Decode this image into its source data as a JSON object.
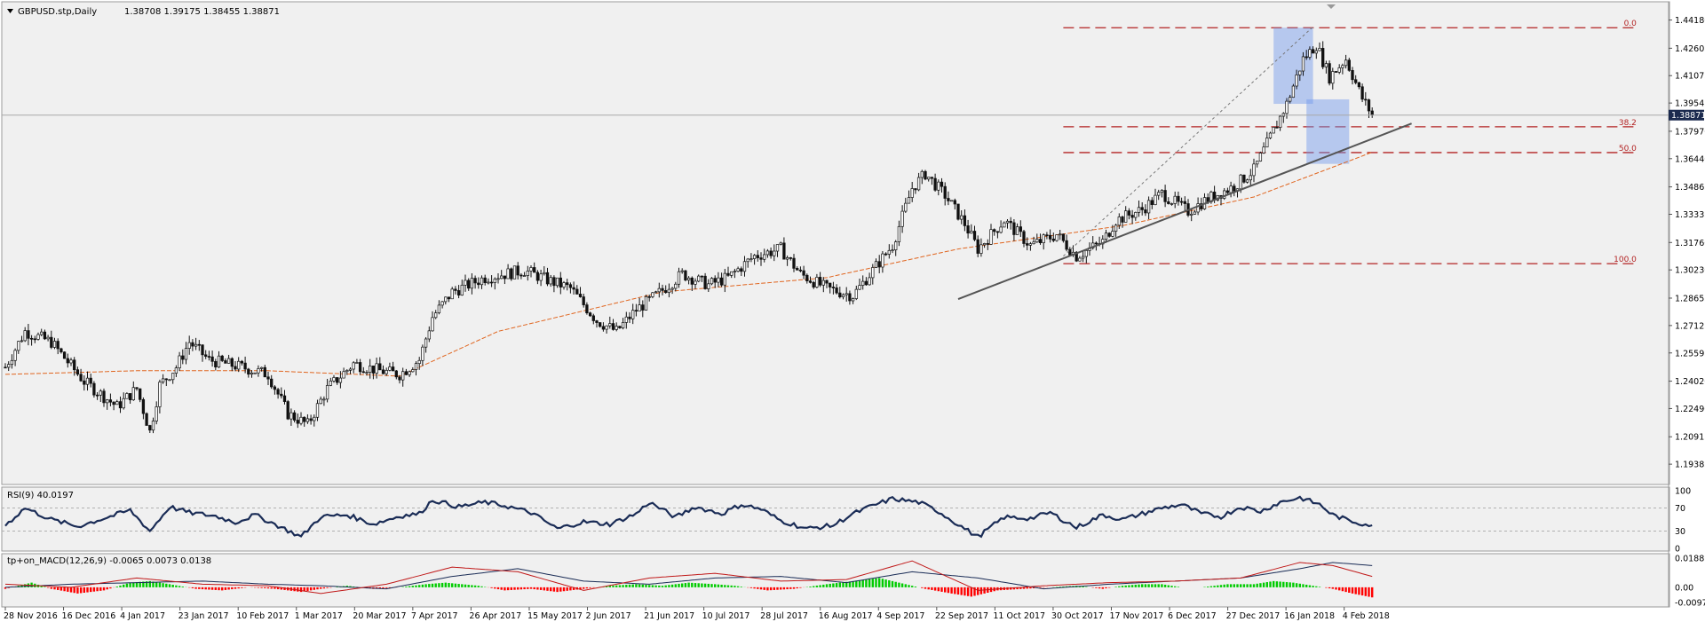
{
  "chart_data": {
    "type": "candlestick",
    "header": {
      "symbol_label": "GBPUSD.stp,Daily",
      "ohlc_label": "1.38708 1.39175 1.38455 1.38871"
    },
    "price_axis": {
      "ylim": [
        1.1845,
        1.45
      ],
      "ticks": [
        "1.44180",
        "1.42605",
        "1.41075",
        "1.39545",
        "1.37970",
        "1.36440",
        "1.34865",
        "1.33335",
        "1.31760",
        "1.30230",
        "1.28655",
        "1.27125",
        "1.25595",
        "1.24020",
        "1.22490",
        "1.20915",
        "1.19385"
      ],
      "current_price_label": "1.38871",
      "current_price": 1.38871
    },
    "x_axis": {
      "labels": [
        "28 Nov 2016",
        "16 Dec 2016",
        "4 Jan 2017",
        "23 Jan 2017",
        "10 Feb 2017",
        "1 Mar 2017",
        "20 Mar 2017",
        "7 Apr 2017",
        "26 Apr 2017",
        "15 May 2017",
        "2 Jun 2017",
        "21 Jun 2017",
        "10 Jul 2017",
        "28 Jul 2017",
        "16 Aug 2017",
        "4 Sep 2017",
        "22 Sep 2017",
        "11 Oct 2017",
        "30 Oct 2017",
        "17 Nov 2017",
        "6 Dec 2017",
        "27 Dec 2017",
        "16 Jan 2018",
        "4 Feb 2018"
      ]
    },
    "close_path_anchors": [
      [
        0,
        1.248
      ],
      [
        6,
        1.268
      ],
      [
        14,
        1.262
      ],
      [
        24,
        1.24
      ],
      [
        34,
        1.226
      ],
      [
        40,
        1.236
      ],
      [
        44,
        1.212
      ],
      [
        47,
        1.238
      ],
      [
        52,
        1.248
      ],
      [
        56,
        1.262
      ],
      [
        62,
        1.252
      ],
      [
        72,
        1.248
      ],
      [
        80,
        1.244
      ],
      [
        86,
        1.222
      ],
      [
        92,
        1.216
      ],
      [
        98,
        1.236
      ],
      [
        106,
        1.25
      ],
      [
        114,
        1.246
      ],
      [
        120,
        1.244
      ],
      [
        126,
        1.252
      ],
      [
        130,
        1.276
      ],
      [
        136,
        1.29
      ],
      [
        146,
        1.298
      ],
      [
        158,
        1.302
      ],
      [
        166,
        1.296
      ],
      [
        172,
        1.292
      ],
      [
        180,
        1.274
      ],
      [
        186,
        1.268
      ],
      [
        192,
        1.28
      ],
      [
        198,
        1.288
      ],
      [
        206,
        1.3
      ],
      [
        214,
        1.294
      ],
      [
        220,
        1.298
      ],
      [
        228,
        1.31
      ],
      [
        236,
        1.314
      ],
      [
        242,
        1.3
      ],
      [
        250,
        1.292
      ],
      [
        258,
        1.288
      ],
      [
        264,
        1.302
      ],
      [
        270,
        1.316
      ],
      [
        276,
        1.348
      ],
      [
        280,
        1.356
      ],
      [
        286,
        1.344
      ],
      [
        292,
        1.328
      ],
      [
        296,
        1.314
      ],
      [
        304,
        1.33
      ],
      [
        312,
        1.316
      ],
      [
        320,
        1.322
      ],
      [
        326,
        1.31
      ],
      [
        334,
        1.318
      ],
      [
        338,
        1.33
      ],
      [
        346,
        1.336
      ],
      [
        352,
        1.345
      ],
      [
        360,
        1.335
      ],
      [
        366,
        1.342
      ],
      [
        374,
        1.349
      ],
      [
        380,
        1.358
      ],
      [
        386,
        1.38
      ],
      [
        390,
        1.395
      ],
      [
        395,
        1.42
      ],
      [
        399,
        1.428
      ],
      [
        403,
        1.41
      ],
      [
        408,
        1.42
      ],
      [
        413,
        1.398
      ],
      [
        416,
        1.389
      ]
    ],
    "moving_average": {
      "name": "",
      "color": "#e0651f",
      "anchors": [
        [
          0,
          1.244
        ],
        [
          40,
          1.246
        ],
        [
          80,
          1.246
        ],
        [
          120,
          1.243
        ],
        [
          150,
          1.268
        ],
        [
          200,
          1.29
        ],
        [
          250,
          1.298
        ],
        [
          290,
          1.314
        ],
        [
          340,
          1.327
        ],
        [
          380,
          1.343
        ],
        [
          416,
          1.368
        ]
      ]
    },
    "trend_line": {
      "from": [
        290,
        1.286
      ],
      "to": [
        428,
        1.384
      ],
      "color": "#555555"
    },
    "dashed_peak_line": {
      "from": [
        322,
        1.31
      ],
      "to": [
        398,
        1.438
      ]
    },
    "fibonacci": {
      "color": "#b22222",
      "x_from": 322,
      "x_to": 497,
      "levels": [
        {
          "label": "0.0",
          "price": 1.4375
        },
        {
          "label": "38.2",
          "price": 1.3822
        },
        {
          "label": "50.0",
          "price": 1.3678
        },
        {
          "label": "100.0",
          "price": 1.3058
        }
      ]
    },
    "boxes": [
      {
        "x": [
          386,
          398
        ],
        "y": [
          1.395,
          1.4375
        ]
      },
      {
        "x": [
          396,
          409
        ],
        "y": [
          1.382,
          1.3975
        ]
      },
      {
        "x": [
          396,
          409
        ],
        "y": [
          1.3615,
          1.382
        ]
      }
    ],
    "rsi": {
      "label": "RSI(9) 40.0197",
      "value": 40.0197,
      "scale_labels": [
        "100",
        "70",
        "30",
        "0"
      ],
      "levels": [
        70,
        30
      ],
      "anchors": [
        [
          0,
          40
        ],
        [
          6,
          70
        ],
        [
          14,
          50
        ],
        [
          22,
          38
        ],
        [
          30,
          52
        ],
        [
          38,
          66
        ],
        [
          44,
          30
        ],
        [
          50,
          72
        ],
        [
          56,
          62
        ],
        [
          64,
          56
        ],
        [
          70,
          45
        ],
        [
          76,
          58
        ],
        [
          82,
          42
        ],
        [
          90,
          20
        ],
        [
          96,
          55
        ],
        [
          104,
          58
        ],
        [
          112,
          42
        ],
        [
          120,
          56
        ],
        [
          126,
          60
        ],
        [
          130,
          84
        ],
        [
          138,
          72
        ],
        [
          146,
          80
        ],
        [
          152,
          74
        ],
        [
          160,
          62
        ],
        [
          168,
          34
        ],
        [
          176,
          46
        ],
        [
          184,
          42
        ],
        [
          192,
          60
        ],
        [
          196,
          80
        ],
        [
          204,
          54
        ],
        [
          210,
          72
        ],
        [
          218,
          60
        ],
        [
          224,
          76
        ],
        [
          230,
          68
        ],
        [
          236,
          48
        ],
        [
          244,
          34
        ],
        [
          252,
          40
        ],
        [
          258,
          60
        ],
        [
          264,
          74
        ],
        [
          270,
          86
        ],
        [
          278,
          80
        ],
        [
          284,
          64
        ],
        [
          292,
          34
        ],
        [
          296,
          20
        ],
        [
          304,
          54
        ],
        [
          312,
          52
        ],
        [
          318,
          62
        ],
        [
          326,
          36
        ],
        [
          334,
          58
        ],
        [
          340,
          50
        ],
        [
          346,
          60
        ],
        [
          352,
          70
        ],
        [
          358,
          76
        ],
        [
          364,
          60
        ],
        [
          370,
          55
        ],
        [
          376,
          72
        ],
        [
          382,
          64
        ],
        [
          388,
          80
        ],
        [
          394,
          88
        ],
        [
          400,
          76
        ],
        [
          404,
          58
        ],
        [
          408,
          50
        ],
        [
          412,
          44
        ],
        [
          416,
          40
        ]
      ]
    },
    "macd": {
      "label": "tp+on_MACD(12,26,9) -0.0065 0.0073 0.0138",
      "values": [
        -0.0065,
        0.0073,
        0.0138
      ],
      "scale_labels": [
        "0.0188",
        "0.00",
        "-0.0097"
      ],
      "ylim": [
        -0.0115,
        0.0205
      ],
      "hist_up_color": "#00cc00",
      "hist_down_color": "#ff0000",
      "main_line_color": "#c01818",
      "signal_line_color": "#1a2c56",
      "hist_anchors": [
        [
          0,
          -0.001
        ],
        [
          8,
          0.003
        ],
        [
          14,
          -0.001
        ],
        [
          22,
          -0.004
        ],
        [
          30,
          -0.002
        ],
        [
          38,
          0.003
        ],
        [
          44,
          0.004
        ],
        [
          50,
          0.002
        ],
        [
          58,
          -0.001
        ],
        [
          66,
          -0.002
        ],
        [
          74,
          0.0
        ],
        [
          82,
          -0.001
        ],
        [
          90,
          -0.003
        ],
        [
          96,
          -0.001
        ],
        [
          104,
          0.001
        ],
        [
          112,
          -0.001
        ],
        [
          120,
          0.0
        ],
        [
          128,
          0.002
        ],
        [
          134,
          0.003
        ],
        [
          144,
          0.001
        ],
        [
          152,
          -0.002
        ],
        [
          160,
          -0.001
        ],
        [
          168,
          -0.003
        ],
        [
          176,
          -0.001
        ],
        [
          184,
          0.001
        ],
        [
          192,
          0.002
        ],
        [
          200,
          0.001
        ],
        [
          208,
          0.003
        ],
        [
          216,
          0.002
        ],
        [
          222,
          0.001
        ],
        [
          232,
          -0.002
        ],
        [
          240,
          -0.001
        ],
        [
          250,
          0.002
        ],
        [
          258,
          0.004
        ],
        [
          266,
          0.006
        ],
        [
          272,
          0.003
        ],
        [
          280,
          -0.001
        ],
        [
          288,
          -0.004
        ],
        [
          294,
          -0.006
        ],
        [
          302,
          -0.002
        ],
        [
          310,
          -0.001
        ],
        [
          318,
          0.0
        ],
        [
          326,
          0.001
        ],
        [
          334,
          -0.001
        ],
        [
          340,
          0.001
        ],
        [
          346,
          0.002
        ],
        [
          352,
          0.002
        ],
        [
          358,
          0.0
        ],
        [
          364,
          0.0
        ],
        [
          372,
          0.002
        ],
        [
          380,
          0.002
        ],
        [
          386,
          0.004
        ],
        [
          392,
          0.003
        ],
        [
          398,
          0.001
        ],
        [
          404,
          -0.001
        ],
        [
          410,
          -0.004
        ],
        [
          416,
          -0.0065
        ]
      ],
      "line_anchors": [
        [
          0,
          0.002
        ],
        [
          20,
          0.0
        ],
        [
          40,
          0.006
        ],
        [
          60,
          0.002
        ],
        [
          80,
          0.001
        ],
        [
          96,
          -0.004
        ],
        [
          116,
          0.002
        ],
        [
          136,
          0.013
        ],
        [
          156,
          0.01
        ],
        [
          176,
          -0.002
        ],
        [
          196,
          0.006
        ],
        [
          216,
          0.009
        ],
        [
          236,
          0.004
        ],
        [
          256,
          0.005
        ],
        [
          276,
          0.017
        ],
        [
          296,
          -0.002
        ],
        [
          316,
          0.001
        ],
        [
          336,
          0.003
        ],
        [
          356,
          0.004
        ],
        [
          376,
          0.006
        ],
        [
          394,
          0.016
        ],
        [
          404,
          0.014
        ],
        [
          416,
          0.007
        ]
      ],
      "signal_anchors": [
        [
          0,
          0.0
        ],
        [
          20,
          0.002
        ],
        [
          40,
          0.003
        ],
        [
          60,
          0.004
        ],
        [
          80,
          0.002
        ],
        [
          96,
          0.001
        ],
        [
          116,
          -0.001
        ],
        [
          136,
          0.007
        ],
        [
          156,
          0.012
        ],
        [
          176,
          0.004
        ],
        [
          196,
          0.002
        ],
        [
          216,
          0.006
        ],
        [
          236,
          0.007
        ],
        [
          256,
          0.003
        ],
        [
          276,
          0.01
        ],
        [
          296,
          0.006
        ],
        [
          316,
          -0.001
        ],
        [
          336,
          0.002
        ],
        [
          356,
          0.004
        ],
        [
          376,
          0.006
        ],
        [
          394,
          0.012
        ],
        [
          404,
          0.016
        ],
        [
          416,
          0.014
        ]
      ]
    }
  }
}
